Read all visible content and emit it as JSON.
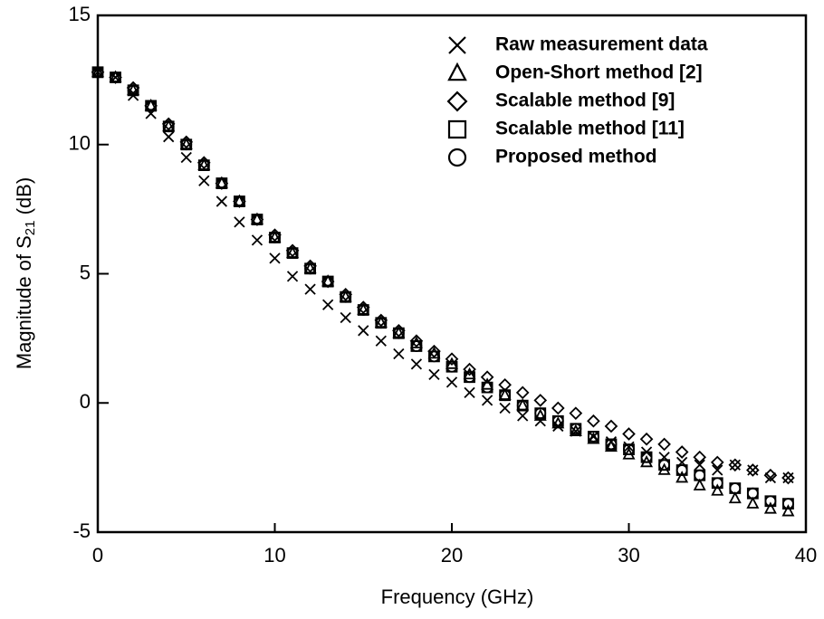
{
  "chart_data": {
    "type": "scatter",
    "x_label": "Frequency (GHz)",
    "y_label": [
      "Magnitude of S",
      "21",
      " (dB)"
    ],
    "xlim": [
      0,
      40
    ],
    "xticks": [
      0,
      10,
      20,
      30,
      40
    ],
    "ylim": [
      -5,
      15
    ],
    "yticks": [
      -5,
      0,
      5,
      10,
      15
    ],
    "x": [
      0,
      1,
      2,
      3,
      4,
      5,
      6,
      7,
      8,
      9,
      10,
      11,
      12,
      13,
      14,
      15,
      16,
      17,
      18,
      19,
      20,
      21,
      22,
      23,
      24,
      25,
      26,
      27,
      28,
      29,
      30,
      31,
      32,
      33,
      34,
      35,
      36,
      37,
      38,
      39
    ],
    "legend": "upper right",
    "series": [
      {
        "name": "Raw measurement data",
        "marker": "x",
        "color": "#000000",
        "values": [
          12.8,
          12.6,
          11.9,
          11.2,
          10.3,
          9.5,
          8.6,
          7.8,
          7.0,
          6.3,
          5.6,
          4.9,
          4.4,
          3.8,
          3.3,
          2.8,
          2.4,
          1.9,
          1.5,
          1.1,
          0.8,
          0.4,
          0.1,
          -0.2,
          -0.5,
          -0.7,
          -0.9,
          -1.1,
          -1.3,
          -1.5,
          -1.7,
          -1.9,
          -2.1,
          -2.3,
          -2.4,
          -2.6,
          -2.4,
          -2.6,
          -2.9,
          -2.9
        ]
      },
      {
        "name": "Open-Short method [2]",
        "marker": "triangle",
        "color": "#000000",
        "values": [
          12.8,
          12.6,
          12.1,
          11.5,
          10.7,
          10.0,
          9.2,
          8.5,
          7.8,
          7.1,
          6.4,
          5.8,
          5.2,
          4.7,
          4.1,
          3.6,
          3.1,
          2.7,
          2.3,
          1.9,
          1.5,
          1.1,
          0.7,
          0.3,
          -0.1,
          -0.5,
          -0.8,
          -1.1,
          -1.4,
          -1.7,
          -2.0,
          -2.3,
          -2.6,
          -2.9,
          -3.2,
          -3.4,
          -3.7,
          -3.9,
          -4.1,
          -4.2
        ]
      },
      {
        "name": "Scalable method [9]",
        "marker": "diamond",
        "color": "#000000",
        "values": [
          12.8,
          12.6,
          12.2,
          11.5,
          10.8,
          10.1,
          9.3,
          8.5,
          7.8,
          7.1,
          6.5,
          5.9,
          5.3,
          4.7,
          4.2,
          3.7,
          3.2,
          2.8,
          2.4,
          2.0,
          1.7,
          1.3,
          1.0,
          0.7,
          0.4,
          0.1,
          -0.2,
          -0.4,
          -0.7,
          -0.9,
          -1.2,
          -1.4,
          -1.6,
          -1.9,
          -2.1,
          -2.3,
          -2.4,
          -2.6,
          -2.8,
          -2.9
        ]
      },
      {
        "name": "Scalable method [11]",
        "marker": "square",
        "color": "#000000",
        "values": [
          12.8,
          12.6,
          12.1,
          11.5,
          10.7,
          10.0,
          9.2,
          8.5,
          7.8,
          7.1,
          6.4,
          5.8,
          5.2,
          4.7,
          4.1,
          3.6,
          3.1,
          2.7,
          2.2,
          1.8,
          1.4,
          1.0,
          0.6,
          0.3,
          -0.1,
          -0.4,
          -0.7,
          -1.0,
          -1.3,
          -1.6,
          -1.8,
          -2.1,
          -2.4,
          -2.6,
          -2.8,
          -3.1,
          -3.3,
          -3.5,
          -3.8,
          -3.9
        ]
      },
      {
        "name": "Proposed method",
        "marker": "circle",
        "color": "#000000",
        "values": [
          12.8,
          12.6,
          12.1,
          11.5,
          10.7,
          10.0,
          9.2,
          8.5,
          7.8,
          7.1,
          6.4,
          5.8,
          5.2,
          4.7,
          4.1,
          3.6,
          3.1,
          2.7,
          2.2,
          1.8,
          1.4,
          1.0,
          0.6,
          0.3,
          -0.1,
          -0.4,
          -0.7,
          -1.0,
          -1.3,
          -1.6,
          -1.8,
          -2.1,
          -2.4,
          -2.6,
          -2.8,
          -3.1,
          -3.3,
          -3.5,
          -3.8,
          -3.9
        ]
      }
    ]
  }
}
